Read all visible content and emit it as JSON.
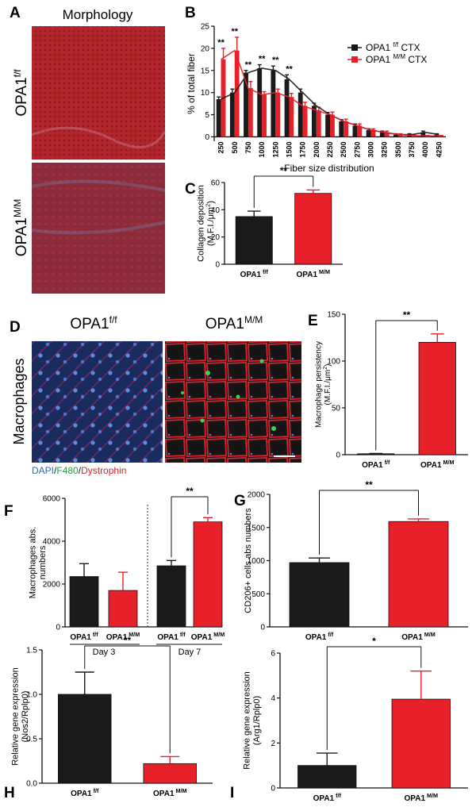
{
  "colors": {
    "ctrl": "#1a1a1a",
    "ko": "#e8202a",
    "tissue_red": "#b7252a",
    "macro_bg": "#152a5c"
  },
  "panels": {
    "A": {
      "letter": "A",
      "title": "Morphology",
      "row_top": "OPA1",
      "row_top_sup": "f/f",
      "row_bottom": "OPA1",
      "row_bottom_sup": "M/M"
    },
    "D": {
      "letter": "D",
      "row_label": "Macrophages",
      "col1": "OPA1",
      "col1_sup": "f/f",
      "col2": "OPA1",
      "col2_sup": "M/M",
      "stain_dapi": "DAPI",
      "stain_sep1": "/",
      "stain_f480": "F480",
      "stain_sep2": "/",
      "stain_dys": "Dystrophin"
    }
  },
  "chart_data": [
    {
      "id": "B",
      "letter": "B",
      "type": "bar",
      "xlabel": "Fiber size distribution",
      "ylabel": "% of total fiber",
      "ylim": [
        -1,
        25
      ],
      "yticks": [
        0,
        5,
        10,
        15,
        20,
        25
      ],
      "categories": [
        "250",
        "500",
        "750",
        "1000",
        "1250",
        "1500",
        "1750",
        "2000",
        "2250",
        "2500",
        "2750",
        "3000",
        "3250",
        "3500",
        "3750",
        "4000",
        "4250"
      ],
      "series": [
        {
          "name": "OPA1",
          "sup": "f/f",
          "suffix": " CTX",
          "color": "#1a1a1a",
          "values": [
            8.5,
            10,
            14.5,
            15.5,
            15,
            13,
            10,
            7,
            5,
            3.5,
            2.5,
            1.5,
            1,
            0.5,
            0.5,
            1,
            0.5
          ],
          "errors": [
            0.5,
            0.8,
            0.5,
            0.8,
            1,
            1,
            0.8,
            0.6,
            0.5,
            0.4,
            0.4,
            0.3,
            0.3,
            0.2,
            0.2,
            0.3,
            0.2
          ]
        },
        {
          "name": "OPA1",
          "sup": "M/M",
          "suffix": " CTX",
          "color": "#e8202a",
          "values": [
            17.5,
            19.5,
            11,
            9.5,
            10,
            9,
            7,
            6,
            5,
            3.5,
            2.5,
            1.5,
            1,
            0.5,
            0.3,
            0.2,
            0.2
          ],
          "errors": [
            2.5,
            3,
            1.5,
            0.7,
            0.8,
            0.8,
            0.8,
            0.7,
            0.6,
            0.5,
            0.4,
            0.3,
            0.3,
            0.2,
            0.2,
            0.1,
            0.1
          ]
        }
      ],
      "significance": [
        {
          "index": 0,
          "label": "**"
        },
        {
          "index": 1,
          "label": "**"
        },
        {
          "index": 2,
          "label": "**"
        },
        {
          "index": 3,
          "label": "**"
        },
        {
          "index": 4,
          "label": "**"
        },
        {
          "index": 5,
          "label": "**"
        }
      ]
    },
    {
      "id": "C",
      "letter": "C",
      "type": "bar",
      "ylabel": "Collagen deposition",
      "ylabel2": "(M.F.I./μm",
      "ylabel2_sup": "2",
      "ylabel2_end": ")",
      "ylim": [
        0,
        60
      ],
      "yticks": [
        0,
        20,
        40,
        60
      ],
      "bars": [
        {
          "name": "OPA1",
          "sup": "f/f",
          "value": 35,
          "error": 4,
          "color": "#1a1a1a"
        },
        {
          "name": "OPA1",
          "sup": "M/M",
          "value": 52,
          "error": 2.5,
          "color": "#e8202a"
        }
      ],
      "significance": "**"
    },
    {
      "id": "E",
      "letter": "E",
      "type": "bar",
      "ylabel": "Macrophage persistency",
      "ylabel2": "(M.F.I./μm",
      "ylabel2_sup": "2",
      "ylabel2_end": ")",
      "ylim": [
        0,
        150
      ],
      "yticks": [
        0,
        50,
        100,
        150
      ],
      "bars": [
        {
          "name": "OPA1",
          "sup": "f/f",
          "value": 1,
          "error": 0.3,
          "color": "#1a1a1a"
        },
        {
          "name": "OPA1",
          "sup": "M/M",
          "value": 120,
          "error": 9,
          "color": "#e8202a"
        }
      ],
      "significance": "**"
    },
    {
      "id": "F",
      "letter": "F",
      "type": "bar",
      "ylabel": "Macrophages abs.",
      "ylabel2": "numbers",
      "ylim": [
        0,
        6000
      ],
      "yticks": [
        0,
        2000,
        4000,
        6000
      ],
      "bars": [
        {
          "name": "OPA1",
          "sup": "f/f",
          "value": 2350,
          "error": 600,
          "color": "#1a1a1a"
        },
        {
          "name": "OPA1",
          "sup": "M/M",
          "value": 1700,
          "error": 850,
          "color": "#e8202a"
        },
        {
          "name": "OPA1",
          "sup": "f/f",
          "value": 2850,
          "error": 250,
          "color": "#1a1a1a"
        },
        {
          "name": "OPA1",
          "sup": "M/M",
          "value": 4900,
          "error": 200,
          "color": "#e8202a"
        }
      ],
      "groups": [
        "Day 3",
        "Day 7"
      ],
      "significance": "**"
    },
    {
      "id": "G",
      "letter": "G",
      "type": "bar",
      "ylabel": "CD206+ cells abs numbers",
      "ylim": [
        0,
        2000
      ],
      "yticks": [
        0,
        500,
        1000,
        1500,
        2000
      ],
      "bars": [
        {
          "name": "OPA1",
          "sup": "f/f",
          "value": 970,
          "error": 70,
          "color": "#1a1a1a"
        },
        {
          "name": "OPA1",
          "sup": "M/M",
          "value": 1590,
          "error": 40,
          "color": "#e8202a"
        }
      ],
      "significance": "**"
    },
    {
      "id": "H",
      "letter": "H",
      "type": "bar",
      "ylabel": "Relative gene expression",
      "ylabel2": "(Nos2/Rplp0)",
      "ylim": [
        0,
        1.5
      ],
      "yticks": [
        0.0,
        0.5,
        1.0,
        1.5
      ],
      "tick_decimals": 1,
      "bars": [
        {
          "name": "OPA1",
          "sup": "f/f",
          "value": 1.0,
          "error": 0.25,
          "color": "#1a1a1a"
        },
        {
          "name": "OPA1",
          "sup": "M/M",
          "value": 0.22,
          "error": 0.08,
          "color": "#e8202a"
        }
      ],
      "significance": "**"
    },
    {
      "id": "I",
      "letter": "I",
      "type": "bar",
      "ylabel": "Relative gene expression",
      "ylabel2": "(Arg1/Rplp0)",
      "ylim": [
        0,
        6
      ],
      "yticks": [
        0,
        2,
        4,
        6
      ],
      "bars": [
        {
          "name": "OPA1",
          "sup": "f/f",
          "value": 1.0,
          "error": 0.55,
          "color": "#1a1a1a"
        },
        {
          "name": "OPA1",
          "sup": "M/M",
          "value": 3.95,
          "error": 1.25,
          "color": "#e8202a"
        }
      ],
      "significance": "*"
    }
  ]
}
